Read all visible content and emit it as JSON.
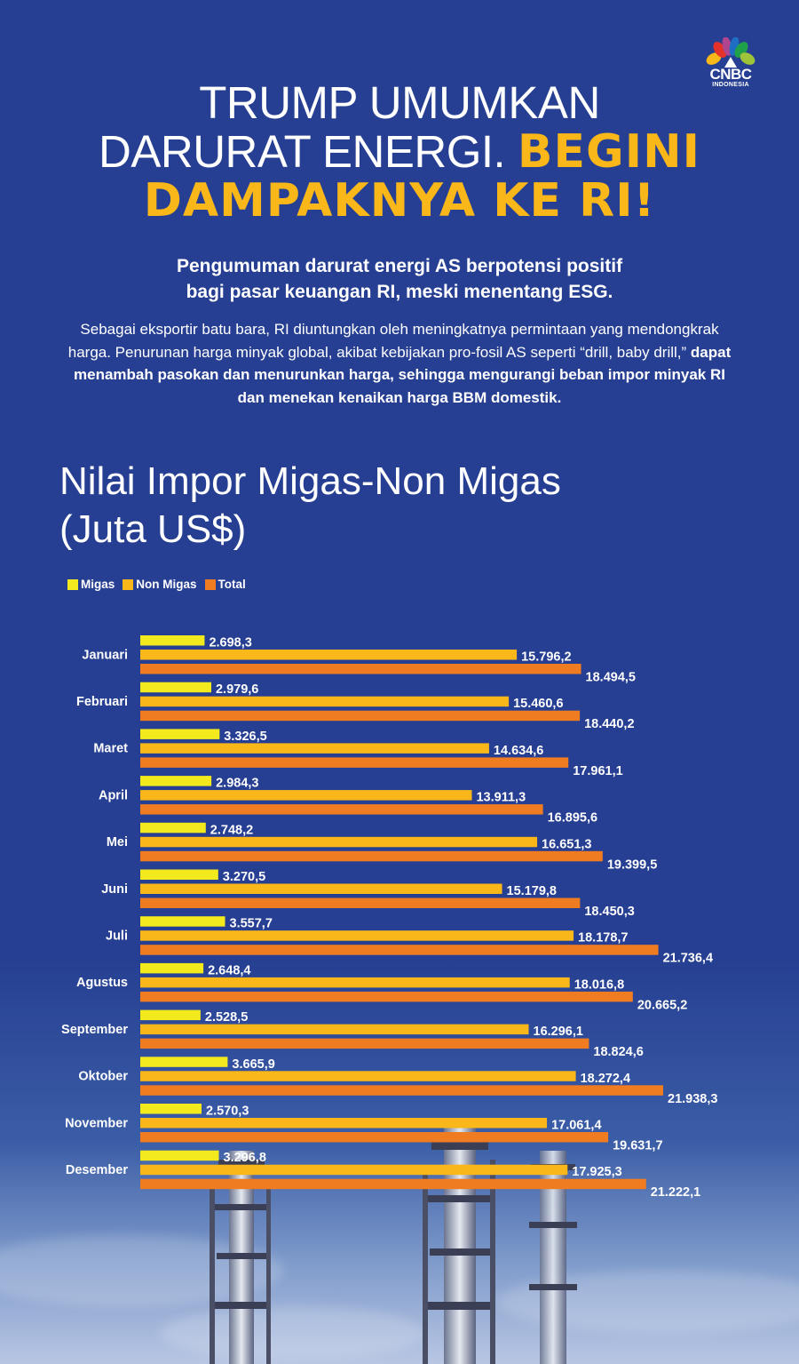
{
  "brand": {
    "line1": "CNBC",
    "line2": "INDONESIA"
  },
  "headline": {
    "part1": "TRUMP UMUMKAN",
    "part2": "DARURAT ENERGI.",
    "highlight1": "BEGINI",
    "highlight2": "DAMPAKNYA KE RI!"
  },
  "subhead": {
    "line1": "Pengumuman darurat energi AS berpotensi positif",
    "line2": "bagi pasar keuangan RI, meski menentang ESG."
  },
  "body": {
    "plain": "Sebagai eksportir batu bara, RI diuntungkan oleh meningkatnya permintaan yang mendongkrak harga. Penurunan harga minyak global, akibat kebijakan pro-fosil AS seperti “drill, baby drill,”",
    "bold": " dapat menambah pasokan dan menurunkan harga, sehingga mengurangi beban impor minyak RI dan menekan kenaikan harga BBM domestik."
  },
  "colors": {
    "background": "#263f92",
    "highlight": "#f9b719",
    "migas": "#f2ea1c",
    "nonmigas": "#f9b719",
    "total": "#f07c22"
  },
  "chart_data": {
    "type": "bar",
    "orientation": "horizontal",
    "title": "Nilai Impor Migas-Non Migas",
    "subtitle": "(Juta US$)",
    "categories": [
      "Januari",
      "Februari",
      "Maret",
      "April",
      "Mei",
      "Juni",
      "Juli",
      "Agustus",
      "September",
      "Oktober",
      "November",
      "Desember"
    ],
    "series": [
      {
        "name": "Migas",
        "color": "#f2ea1c",
        "values": [
          2698.3,
          2979.6,
          3326.5,
          2984.3,
          2748.2,
          3270.5,
          3557.7,
          2648.4,
          2528.5,
          3665.9,
          2570.3,
          3296.8
        ],
        "labels": [
          "2.698,3",
          "2.979,6",
          "3.326,5",
          "2.984,3",
          "2.748,2",
          "3.270,5",
          "3.557,7",
          "2.648,4",
          "2.528,5",
          "3.665,9",
          "2.570,3",
          "3.296,8"
        ]
      },
      {
        "name": "Non Migas",
        "color": "#f9b719",
        "values": [
          15796.2,
          15460.6,
          14634.6,
          13911.3,
          16651.3,
          15179.8,
          18178.7,
          18016.8,
          16296.1,
          18272.4,
          17061.4,
          17925.3
        ],
        "labels": [
          "15.796,2",
          "15.460,6",
          "14.634,6",
          "13.911,3",
          "16.651,3",
          "15.179,8",
          "18.178,7",
          "18.016,8",
          "16.296,1",
          "18.272,4",
          "17.061,4",
          "17.925,3"
        ]
      },
      {
        "name": "Total",
        "color": "#f07c22",
        "values": [
          18494.5,
          18440.2,
          17961.1,
          16895.6,
          19399.5,
          18450.3,
          21736.4,
          20665.2,
          18824.6,
          21938.3,
          19631.7,
          21222.1
        ],
        "labels": [
          "18.494,5",
          "18.440,2",
          "17.961,1",
          "16.895,6",
          "19.399,5",
          "18.450,3",
          "21.736,4",
          "20.665,2",
          "18.824,6",
          "21.938,3",
          "19.631,7",
          "21.222,1"
        ]
      }
    ],
    "xlim": [
      0,
      21938.3
    ],
    "legend": "top-left",
    "grid": false
  }
}
